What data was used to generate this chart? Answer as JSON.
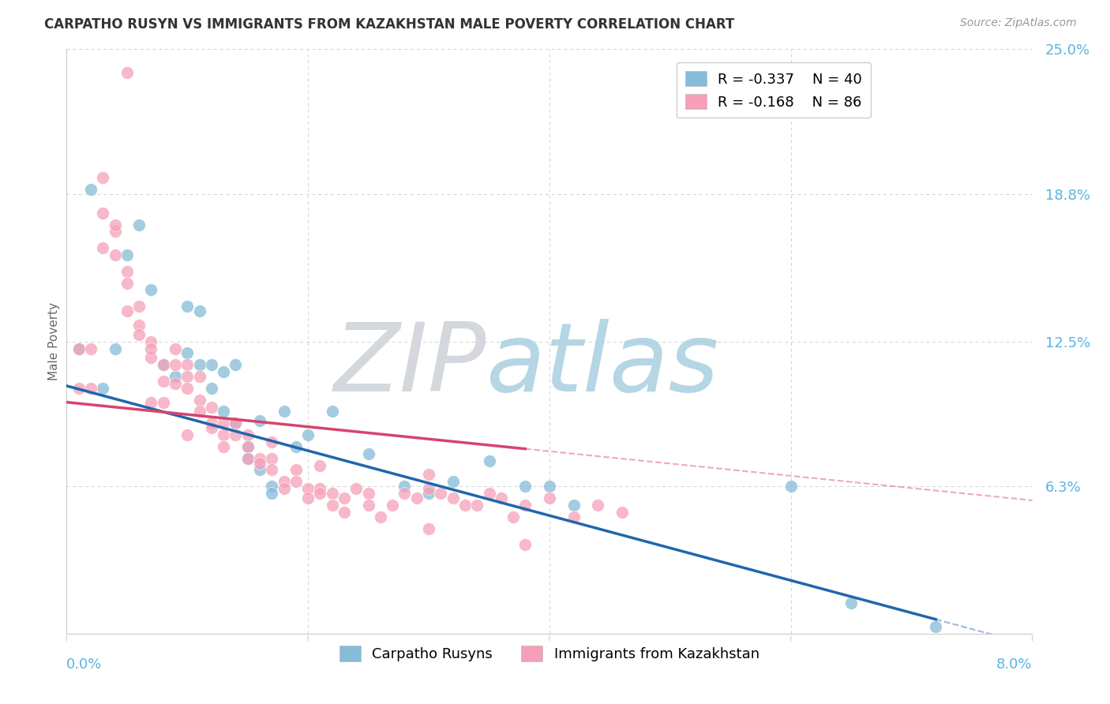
{
  "title": "CARPATHO RUSYN VS IMMIGRANTS FROM KAZAKHSTAN MALE POVERTY CORRELATION CHART",
  "source": "Source: ZipAtlas.com",
  "ylabel": "Male Poverty",
  "xlim": [
    0.0,
    0.08
  ],
  "ylim": [
    0.0,
    0.25
  ],
  "yticks": [
    0.0,
    0.063,
    0.125,
    0.188,
    0.25
  ],
  "ytick_labels": [
    "",
    "6.3%",
    "12.5%",
    "18.8%",
    "25.0%"
  ],
  "xtick_left_label": "0.0%",
  "xtick_right_label": "8.0%",
  "color_blue": "#85bcd8",
  "color_pink": "#f5a0b8",
  "color_blue_line": "#2166ac",
  "color_pink_line": "#d6446e",
  "color_grid": "#cccccc",
  "color_title": "#333333",
  "color_source": "#999999",
  "color_axis_label": "#666666",
  "color_ytick": "#5ab4e0",
  "legend1_label": "Carpatho Rusyns",
  "legend2_label": "Immigrants from Kazakhstan",
  "blue_line_x0": 0.0,
  "blue_line_y0": 0.106,
  "blue_line_x1": 0.08,
  "blue_line_y1": -0.005,
  "blue_line_solid_end": 0.072,
  "pink_line_x0": 0.0,
  "pink_line_y0": 0.099,
  "pink_line_x1": 0.08,
  "pink_line_y1": 0.057,
  "pink_line_solid_end": 0.038,
  "blue_dots_x": [
    0.001,
    0.002,
    0.003,
    0.004,
    0.005,
    0.006,
    0.007,
    0.008,
    0.009,
    0.01,
    0.01,
    0.011,
    0.011,
    0.012,
    0.012,
    0.013,
    0.013,
    0.014,
    0.014,
    0.015,
    0.015,
    0.016,
    0.016,
    0.017,
    0.017,
    0.018,
    0.019,
    0.02,
    0.022,
    0.025,
    0.028,
    0.03,
    0.032,
    0.035,
    0.038,
    0.04,
    0.042,
    0.06,
    0.065,
    0.072
  ],
  "blue_dots_y": [
    0.122,
    0.19,
    0.105,
    0.122,
    0.162,
    0.175,
    0.147,
    0.115,
    0.11,
    0.12,
    0.14,
    0.138,
    0.115,
    0.105,
    0.115,
    0.112,
    0.095,
    0.115,
    0.09,
    0.08,
    0.075,
    0.091,
    0.07,
    0.063,
    0.06,
    0.095,
    0.08,
    0.085,
    0.095,
    0.077,
    0.063,
    0.06,
    0.065,
    0.074,
    0.063,
    0.063,
    0.055,
    0.063,
    0.013,
    0.003
  ],
  "pink_dots_x": [
    0.001,
    0.001,
    0.002,
    0.002,
    0.003,
    0.003,
    0.003,
    0.004,
    0.004,
    0.004,
    0.005,
    0.005,
    0.005,
    0.006,
    0.006,
    0.006,
    0.007,
    0.007,
    0.007,
    0.007,
    0.008,
    0.008,
    0.008,
    0.009,
    0.009,
    0.009,
    0.01,
    0.01,
    0.01,
    0.011,
    0.011,
    0.011,
    0.012,
    0.012,
    0.012,
    0.013,
    0.013,
    0.013,
    0.014,
    0.014,
    0.015,
    0.015,
    0.015,
    0.016,
    0.016,
    0.017,
    0.017,
    0.018,
    0.018,
    0.019,
    0.019,
    0.02,
    0.02,
    0.021,
    0.021,
    0.022,
    0.022,
    0.023,
    0.023,
    0.024,
    0.025,
    0.025,
    0.026,
    0.027,
    0.028,
    0.029,
    0.03,
    0.03,
    0.031,
    0.032,
    0.033,
    0.034,
    0.035,
    0.036,
    0.037,
    0.038,
    0.04,
    0.042,
    0.044,
    0.046,
    0.005,
    0.01,
    0.017,
    0.021,
    0.03,
    0.038
  ],
  "pink_dots_y": [
    0.122,
    0.105,
    0.122,
    0.105,
    0.195,
    0.18,
    0.165,
    0.172,
    0.175,
    0.162,
    0.155,
    0.138,
    0.24,
    0.14,
    0.132,
    0.128,
    0.125,
    0.118,
    0.122,
    0.099,
    0.115,
    0.108,
    0.099,
    0.122,
    0.115,
    0.107,
    0.115,
    0.11,
    0.105,
    0.1,
    0.11,
    0.095,
    0.097,
    0.09,
    0.088,
    0.09,
    0.085,
    0.08,
    0.09,
    0.085,
    0.085,
    0.08,
    0.075,
    0.075,
    0.073,
    0.075,
    0.07,
    0.065,
    0.062,
    0.07,
    0.065,
    0.062,
    0.058,
    0.062,
    0.06,
    0.06,
    0.055,
    0.058,
    0.052,
    0.062,
    0.06,
    0.055,
    0.05,
    0.055,
    0.06,
    0.058,
    0.068,
    0.062,
    0.06,
    0.058,
    0.055,
    0.055,
    0.06,
    0.058,
    0.05,
    0.055,
    0.058,
    0.05,
    0.055,
    0.052,
    0.15,
    0.085,
    0.082,
    0.072,
    0.045,
    0.038
  ]
}
